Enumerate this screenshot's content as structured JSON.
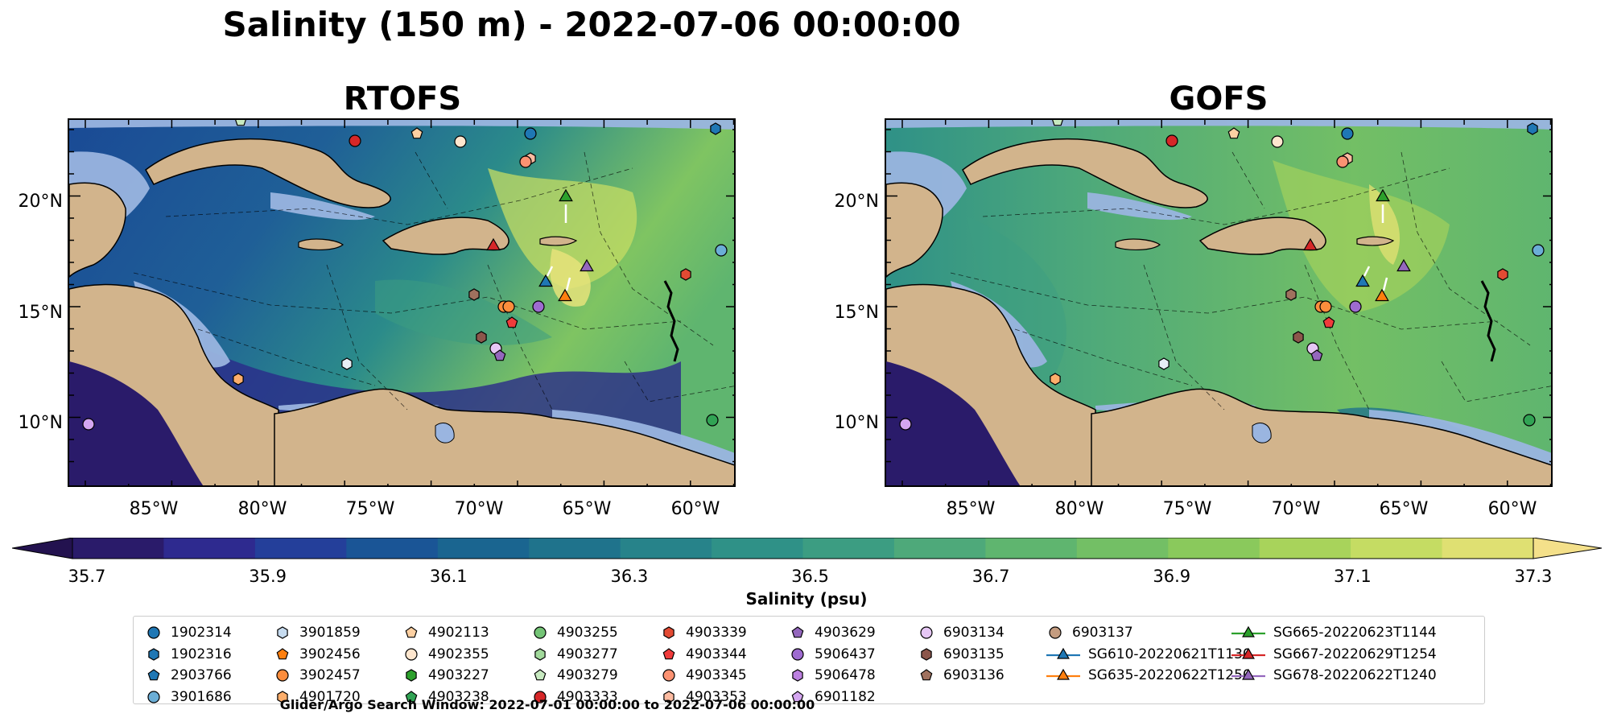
{
  "suptitle": "Salinity (150 m) - 2022-07-06 00:00:00",
  "panels": [
    {
      "title": "RTOFS",
      "palette": "rtofs"
    },
    {
      "title": "GOFS",
      "palette": "gofs"
    }
  ],
  "lat_ticks": [
    "20°N",
    "15°N",
    "10°N"
  ],
  "lon_ticks": [
    "85°W",
    "80°W",
    "75°W",
    "70°W",
    "65°W",
    "60°W"
  ],
  "colorbar": {
    "label": "Salinity (psu)",
    "ticks": [
      "35.7",
      "35.9",
      "36.1",
      "36.3",
      "36.5",
      "36.7",
      "36.9",
      "37.1",
      "37.3"
    ],
    "colors": [
      "#2a1b6a",
      "#2e2a8f",
      "#243f9a",
      "#1a5596",
      "#1a6590",
      "#1f738c",
      "#27838a",
      "#2f9187",
      "#3c9d82",
      "#4ea97a",
      "#5fb56f",
      "#73bf65",
      "#8ac95c",
      "#a8d35b",
      "#c5dc63",
      "#dfe072"
    ]
  },
  "legend": {
    "columns": [
      [
        {
          "label": "1902314",
          "marker": "circle",
          "color": "#1f77b4"
        },
        {
          "label": "1902316",
          "marker": "hexagon",
          "color": "#1f77b4"
        },
        {
          "label": "2903766",
          "marker": "pentagon",
          "color": "#1f77b4"
        },
        {
          "label": "3901686",
          "marker": "circle",
          "color": "#6baed6"
        }
      ],
      [
        {
          "label": "3901859",
          "marker": "hexagon",
          "color": "#c6dbef"
        },
        {
          "label": "3902456",
          "marker": "pentagon",
          "color": "#ff7f0e"
        },
        {
          "label": "3902457",
          "marker": "circle",
          "color": "#fd8d3c"
        },
        {
          "label": "4901720",
          "marker": "hexagon",
          "color": "#fdae6b"
        }
      ],
      [
        {
          "label": "4902113",
          "marker": "pentagon",
          "color": "#fdd0a2"
        },
        {
          "label": "4902355",
          "marker": "circle",
          "color": "#fee6ce"
        },
        {
          "label": "4903227",
          "marker": "hexagon",
          "color": "#2ca02c"
        },
        {
          "label": "4903238",
          "marker": "pentagon",
          "color": "#31a354"
        }
      ],
      [
        {
          "label": "4903255",
          "marker": "circle",
          "color": "#74c476"
        },
        {
          "label": "4903277",
          "marker": "hexagon",
          "color": "#a1d99b"
        },
        {
          "label": "4903279",
          "marker": "pentagon",
          "color": "#c7e9c0"
        },
        {
          "label": "4903333",
          "marker": "circle",
          "color": "#d62728"
        }
      ],
      [
        {
          "label": "4903339",
          "marker": "hexagon",
          "color": "#e34a33"
        },
        {
          "label": "4903344",
          "marker": "pentagon",
          "color": "#f03b3b"
        },
        {
          "label": "4903345",
          "marker": "circle",
          "color": "#fc9272"
        },
        {
          "label": "4903353",
          "marker": "hexagon",
          "color": "#fcbba1"
        }
      ],
      [
        {
          "label": "4903629",
          "marker": "pentagon",
          "color": "#9467bd"
        },
        {
          "label": "5906437",
          "marker": "circle",
          "color": "#9e6bd0"
        },
        {
          "label": "5906478",
          "marker": "hexagon",
          "color": "#bc80e0"
        },
        {
          "label": "6901182",
          "marker": "pentagon",
          "color": "#d4a6f0"
        }
      ],
      [
        {
          "label": "6903134",
          "marker": "circle",
          "color": "#e6c7f5"
        },
        {
          "label": "6903135",
          "marker": "hexagon",
          "color": "#8c564b"
        },
        {
          "label": "6903136",
          "marker": "pentagon",
          "color": "#a0715e"
        }
      ],
      [
        {
          "label": "6903137",
          "marker": "circle",
          "color": "#c49c80"
        },
        {
          "label": "SG610-20220621T1130",
          "marker": "triangle",
          "color": "#1f77b4"
        },
        {
          "label": "SG635-20220622T1250",
          "marker": "triangle",
          "color": "#ff7f0e"
        }
      ],
      [
        {
          "label": "SG665-20220623T1144",
          "marker": "triangle",
          "color": "#2ca02c"
        },
        {
          "label": "SG667-20220629T1254",
          "marker": "triangle",
          "color": "#d62728"
        },
        {
          "label": "SG678-20220622T1240",
          "marker": "triangle",
          "color": "#9467bd"
        }
      ]
    ]
  },
  "search_window": "Glider/Argo Search Window: 2022-07-01 00:00:00 to 2022-07-06 00:00:00"
}
